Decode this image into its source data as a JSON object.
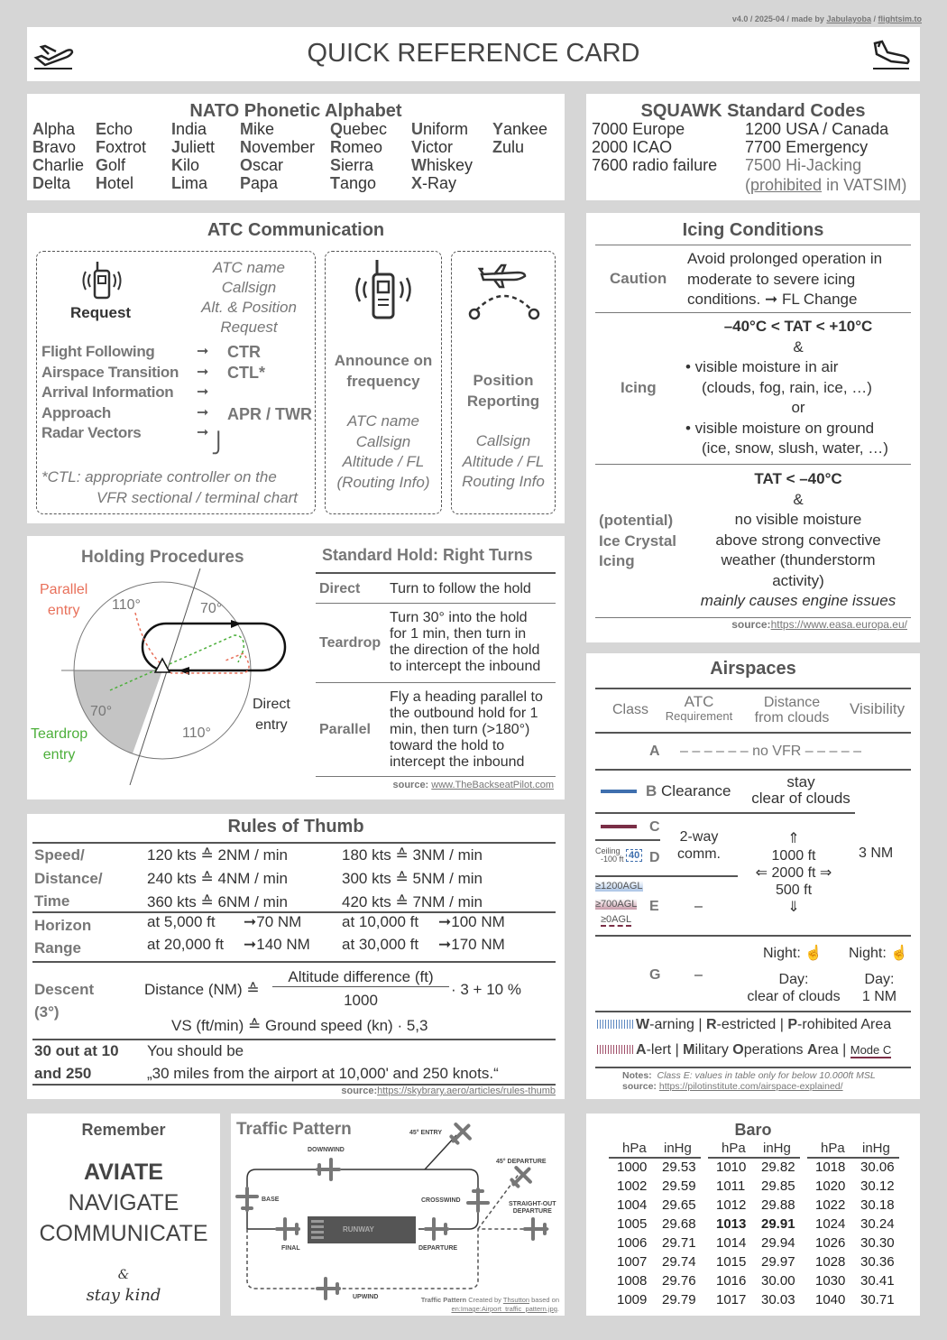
{
  "credit": {
    "version": "v4.0 / 2025-04 / made by ",
    "author": "Jabulayoba",
    "sep": " / ",
    "site": "flightsim.to"
  },
  "header": {
    "title": "QUICK REFERENCE CARD",
    "left_icon": "takeoff-icon",
    "right_icon": "landing-icon"
  },
  "nato": {
    "title": "NATO Phonetic Alphabet",
    "columns": [
      [
        "Alpha",
        "Bravo",
        "Charlie",
        "Delta"
      ],
      [
        "Echo",
        "Foxtrot",
        "Golf",
        "Hotel"
      ],
      [
        "India",
        "Juliett",
        "Kilo",
        "Lima"
      ],
      [
        "Mike",
        "November",
        "Oscar",
        "Papa"
      ],
      [
        "Quebec",
        "Romeo",
        "Sierra",
        "Tango"
      ],
      [
        "Uniform",
        "Victor",
        "Whiskey",
        "X-Ray"
      ],
      [
        "Yankee",
        "Zulu"
      ]
    ]
  },
  "squawk": {
    "title": "SQUAWK Standard Codes",
    "codes": [
      {
        "code": "7000",
        "label": "Europe"
      },
      {
        "code": "2000",
        "label": "ICAO"
      },
      {
        "code": "7600",
        "label": "radio failure"
      },
      {
        "code": "1200",
        "label": "USA / Canada"
      },
      {
        "code": "7700",
        "label": "Emergency"
      },
      {
        "code": "7500",
        "label": "Hi-Jacking"
      }
    ],
    "note_open": "(",
    "note_link": "prohibited",
    "note_rest": " in VATSIM)"
  },
  "atc": {
    "title": "ATC Communication",
    "request": {
      "label": "Request",
      "lines": [
        "ATC name",
        "Callsign",
        "Alt. & Position",
        "Request"
      ]
    },
    "services": [
      {
        "name": "Flight Following",
        "to": "CTR"
      },
      {
        "name": "Airspace Transition",
        "to": "CTL*"
      },
      {
        "name": "Arrival Information",
        "to": ""
      },
      {
        "name": "Approach",
        "to": ""
      },
      {
        "name": "Radar Vectors",
        "to": ""
      }
    ],
    "apr": "APR / TWR",
    "footnote": [
      "*CTL: appropriate controller on the",
      "VFR sectional / terminal chart"
    ],
    "announce": {
      "label": [
        "Announce on",
        "frequency"
      ],
      "lines": [
        "ATC name",
        "Callsign",
        "Altitude / FL",
        "(Routing Info)"
      ]
    },
    "position": {
      "label": [
        "Position",
        "Reporting"
      ],
      "lines": [
        "Callsign",
        "Altitude / FL",
        "Routing Info"
      ]
    }
  },
  "icing": {
    "title": "Icing Conditions",
    "caution": {
      "label": "Caution",
      "text": [
        "Avoid prolonged operation in",
        "moderate to severe icing",
        "conditions. ➞ FL Change"
      ]
    },
    "icing": {
      "label": "Icing",
      "lines": [
        "–40°C < TAT < +10°C",
        "&",
        "• visible moisture in air",
        "(clouds, fog, rain, ice, …)",
        "or",
        "• visible moisture on ground",
        "(ice, snow, slush, water, …)"
      ]
    },
    "crystal": {
      "label": [
        "(potential)",
        "Ice Crystal",
        "Icing"
      ],
      "lines": [
        "TAT < –40°C",
        "&",
        "no visible moisture",
        "above strong convective",
        "weather (thunderstorm",
        "activity)"
      ],
      "note": "mainly causes engine issues"
    },
    "source_label": "source:",
    "source_link": "https://www.easa.europa.eu/"
  },
  "holding": {
    "title": "Holding Procedures",
    "parallel": [
      "Parallel",
      "entry"
    ],
    "teardrop": [
      "Teardrop",
      "entry"
    ],
    "direct": [
      "Direct",
      "entry"
    ],
    "angles": [
      "110°",
      "70°",
      "70°",
      "110°"
    ],
    "colors": {
      "parallel": "#e8705a",
      "teardrop": "#4caf3a",
      "sector": "#c4c4c4"
    },
    "table_title": "Standard Hold: Right Turns",
    "rows": [
      {
        "name": "Direct",
        "text": [
          "Turn to follow the hold"
        ]
      },
      {
        "name": "Teardrop",
        "text": [
          "Turn 30° into the hold",
          "for 1 min, then turn in",
          "the direction of the hold",
          "to intercept the inbound"
        ]
      },
      {
        "name": "Parallel",
        "text": [
          "Fly a heading parallel to",
          "the outbound hold for 1",
          "min, then turn (>180°)",
          "toward the hold to",
          "intercept the inbound"
        ]
      }
    ],
    "source_label": "source: ",
    "source_link": "www.TheBackseatPilot.com"
  },
  "airspaces": {
    "title": "Airspaces",
    "headers": {
      "class": "Class",
      "atc": "ATC",
      "atc2": "Requirement",
      "dist": "Distance",
      "dist2": "from clouds",
      "vis": "Visibility"
    },
    "a": {
      "class": "A",
      "text": "– – – – – – no VFR – – – – –"
    },
    "b": {
      "class": "B",
      "atc": "Clearance",
      "dist": [
        "stay",
        "clear of clouds"
      ]
    },
    "c": {
      "class": "C"
    },
    "d": {
      "class": "D",
      "ceiling": "Ceiling",
      "ceiling2": "-100 ft",
      "ceil_val": "40"
    },
    "cd_atc": [
      "2-way",
      "comm."
    ],
    "cde_dist": [
      "1000 ft",
      "2000 ft",
      "500 ft"
    ],
    "cde_vis": "3 NM",
    "e": {
      "class": "E",
      "atc": "–",
      "agl": [
        "≥1200AGL",
        "≥700AGL",
        "≥0AGL"
      ]
    },
    "g": {
      "class": "G",
      "atc": "–",
      "dist_night": "Night: ☝",
      "dist": [
        "Day:",
        "clear of clouds"
      ],
      "vis_night": "Night: ☝",
      "vis": [
        "Day:",
        "1 NM"
      ]
    },
    "legend1": [
      {
        "k": "W",
        "r": "-arning | "
      },
      {
        "k": "R",
        "r": "-estricted | "
      },
      {
        "k": "P",
        "r": "-rohibited Area"
      }
    ],
    "legend2": [
      {
        "k": "A",
        "r": "-lert | "
      },
      {
        "k": "M",
        "r": "ilitary "
      },
      {
        "k": "O",
        "r": "perations "
      },
      {
        "k": "A",
        "r": "rea | "
      }
    ],
    "modec": "Mode C",
    "notes_label": "Notes:",
    "notes": "Class E: values in table only for below 10.000ft MSL",
    "source_label": "source:",
    "source_link": "https://pilotinstitute.com/airspace-explained/",
    "colors": {
      "b": "#3f6fae",
      "c": "#7a2e46"
    }
  },
  "rules": {
    "title": "Rules of Thumb",
    "speed": {
      "label": [
        "Speed/",
        "Distance/",
        "Time"
      ],
      "left": [
        "120 kts ≙ 2NM / min",
        "240 kts ≙ 4NM / min",
        "360 kts ≙ 6NM / min"
      ],
      "right": [
        "180 kts ≙ 3NM / min",
        "300 kts ≙ 5NM / min",
        "420 kts ≙ 7NM / min"
      ]
    },
    "horizon": {
      "label": [
        "Horizon",
        "Range"
      ],
      "rows": [
        [
          "at 5,000 ft",
          "➞70 NM",
          "at 10,000 ft",
          "➞100 NM"
        ],
        [
          "at 20,000 ft",
          "➞140 NM",
          "at 30,000 ft",
          "➞170 NM"
        ]
      ]
    },
    "descent": {
      "label": [
        "Descent",
        "(3°)"
      ],
      "lhs": "Distance (NM)  ≙",
      "num": "Altitude difference (ft)",
      "den": "1000",
      "rhs": "·  3 + 10 %",
      "vs": "VS (ft/min)  ≙ Ground speed (kn)  · 5,3"
    },
    "thirty": {
      "label": [
        "30 out at 10",
        "and 250"
      ],
      "text": [
        "You should be",
        "„30 miles from the airport at 10,000' and 250 knots.“"
      ]
    },
    "source_label": "source:",
    "source_link": "https://skybrary.aero/articles/rules-thumb"
  },
  "remember": {
    "title": "Remember",
    "items": [
      "AVIATE",
      "NAVIGATE",
      "COMMUNICATE"
    ],
    "amp": "&",
    "kind": "stay kind"
  },
  "traffic": {
    "title": "Traffic Pattern",
    "labels": {
      "entry": "45° ENTRY",
      "downwind": "DOWNWIND",
      "dep45": "45° DEPARTURE",
      "base": "BASE",
      "crosswind": "CROSSWIND",
      "straight": "STRAIGHT-OUT",
      "straight2": "DEPARTURE",
      "runway": "RUNWAY",
      "final": "FINAL",
      "departure": "DEPARTURE",
      "upwind": "UPWIND"
    },
    "credit_b": "Traffic Pattern",
    "credit1": " Created by ",
    "credit_link": "Thsutton",
    "credit2": " based on",
    "credit_link2": "en:Image:Airport_traffic_pattern.jpg",
    "credit3": "."
  },
  "baro": {
    "title": "Baro",
    "h1": "hPa",
    "h2": "inHg",
    "columns": [
      [
        [
          "1000",
          "29.53"
        ],
        [
          "1002",
          "29.59"
        ],
        [
          "1004",
          "29.65"
        ],
        [
          "1005",
          "29.68"
        ],
        [
          "1006",
          "29.71"
        ],
        [
          "1007",
          "29.74"
        ],
        [
          "1008",
          "29.76"
        ],
        [
          "1009",
          "29.79"
        ]
      ],
      [
        [
          "1010",
          "29.82"
        ],
        [
          "1011",
          "29.85"
        ],
        [
          "1012",
          "29.88"
        ],
        [
          "1013",
          "29.91"
        ],
        [
          "1014",
          "29.94"
        ],
        [
          "1015",
          "29.97"
        ],
        [
          "1016",
          "30.00"
        ],
        [
          "1017",
          "30.03"
        ]
      ],
      [
        [
          "1018",
          "30.06"
        ],
        [
          "1020",
          "30.12"
        ],
        [
          "1022",
          "30.18"
        ],
        [
          "1024",
          "30.24"
        ],
        [
          "1026",
          "30.30"
        ],
        [
          "1028",
          "30.36"
        ],
        [
          "1030",
          "30.41"
        ],
        [
          "1040",
          "30.71"
        ]
      ]
    ],
    "highlight": "1013"
  }
}
